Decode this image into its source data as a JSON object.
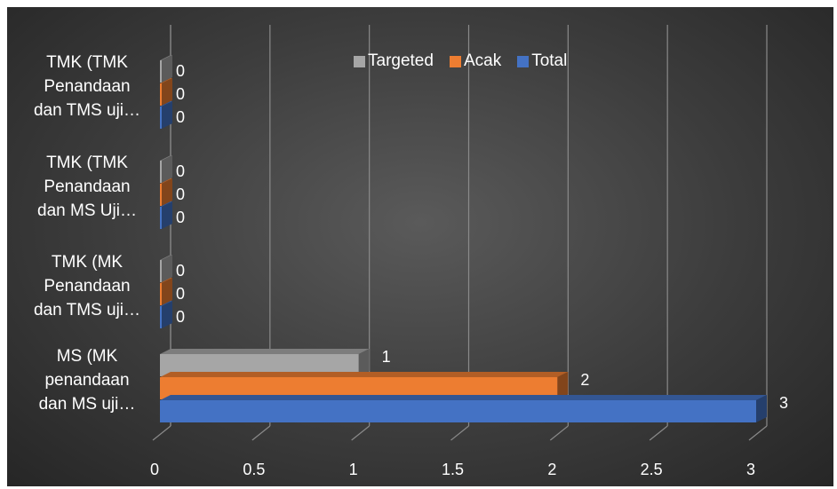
{
  "chart_data": {
    "type": "bar",
    "orientation": "horizontal",
    "style": "3d-clustered",
    "categories": [
      [
        "MS (MK",
        "penandaan",
        "dan MS uji…"
      ],
      [
        "TMK (MK",
        "Penandaan",
        "dan TMS uji…"
      ],
      [
        "TMK (TMK",
        "Penandaan",
        "dan MS Uji…"
      ],
      [
        "TMK (TMK",
        "Penandaan",
        "dan TMS uji…"
      ]
    ],
    "series": [
      {
        "name": "Targeted",
        "values": [
          1,
          0,
          0,
          0
        ],
        "color": "#a6a6a6"
      },
      {
        "name": "Acak",
        "values": [
          2,
          0,
          0,
          0
        ],
        "color": "#ed7d31"
      },
      {
        "name": "Total",
        "values": [
          3,
          0,
          0,
          0
        ],
        "color": "#4472c4"
      }
    ],
    "xticks": [
      "0",
      "0.5",
      "1",
      "1.5",
      "2",
      "2.5",
      "3"
    ],
    "xlim": [
      0,
      3
    ],
    "grid": true,
    "legend_position": "top-right",
    "background": "#3a3a3a"
  }
}
